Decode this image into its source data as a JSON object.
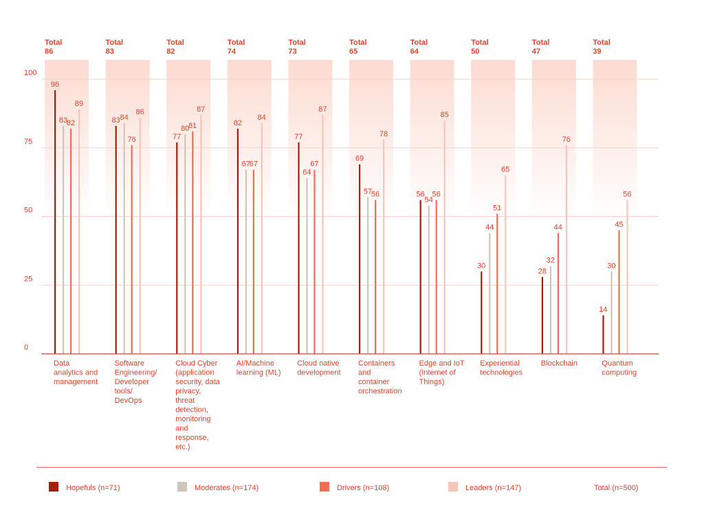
{
  "chart_data": {
    "type": "bar",
    "y_ticks": [
      "100",
      "75",
      "50",
      "25",
      "0"
    ],
    "ylim": [
      0,
      100
    ],
    "grid": true,
    "categories": [
      {
        "total_label": "Total",
        "total_value": "86",
        "label_lines": [
          "Data",
          "analytics and",
          "management"
        ]
      },
      {
        "total_label": "Total",
        "total_value": "83",
        "label_lines": [
          "Software",
          "Engineering/",
          "Developer",
          "tools/",
          "DevOps"
        ]
      },
      {
        "total_label": "Total",
        "total_value": "82",
        "label_lines": [
          "Cloud Cyber",
          "(application",
          "security, data",
          "privacy,",
          "threat",
          "detection,",
          "monitoring",
          "and",
          "response,",
          "etc.)"
        ]
      },
      {
        "total_label": "Total",
        "total_value": "74",
        "label_lines": [
          "AI/Machine",
          "learning (ML)"
        ]
      },
      {
        "total_label": "Total",
        "total_value": "73",
        "label_lines": [
          "Cloud native",
          "development"
        ]
      },
      {
        "total_label": "Total",
        "total_value": "65",
        "label_lines": [
          "Containers",
          "and",
          "container",
          "orchestration"
        ]
      },
      {
        "total_label": "Total",
        "total_value": "64",
        "label_lines": [
          "Edge and IoT",
          "(Internet of",
          "Things)"
        ]
      },
      {
        "total_label": "Total",
        "total_value": "50",
        "label_lines": [
          "Experiential",
          "technologies"
        ]
      },
      {
        "total_label": "Total",
        "total_value": "47",
        "label_lines": [
          "Blockchain"
        ]
      },
      {
        "total_label": "Total",
        "total_value": "39",
        "label_lines": [
          "Quantum",
          "computing"
        ]
      }
    ],
    "series": [
      {
        "name": "Hopefuls (n=71)",
        "color": "#a61e10",
        "values": [
          96,
          83,
          77,
          82,
          77,
          69,
          56,
          30,
          28,
          14
        ]
      },
      {
        "name": "Moderates (n=174)",
        "color": "#cfc6b7",
        "values": [
          83,
          84,
          80,
          67,
          64,
          57,
          54,
          44,
          32,
          30
        ]
      },
      {
        "name": "Drivers (n=108)",
        "color": "#ee6e55",
        "values": [
          82,
          76,
          81,
          67,
          67,
          56,
          56,
          51,
          44,
          45
        ]
      },
      {
        "name": "Leaders (n=147)",
        "color": "#f9c5b8",
        "values": [
          89,
          86,
          87,
          84,
          87,
          78,
          85,
          65,
          76,
          56
        ]
      }
    ],
    "legend_position": "bottom",
    "total_legend": "Total (n=500)"
  },
  "colors": {
    "accent": "#e8402a",
    "grid": "#f8d2c7",
    "axis": "#e8402a",
    "total_band_top": "#fcd9cf"
  }
}
